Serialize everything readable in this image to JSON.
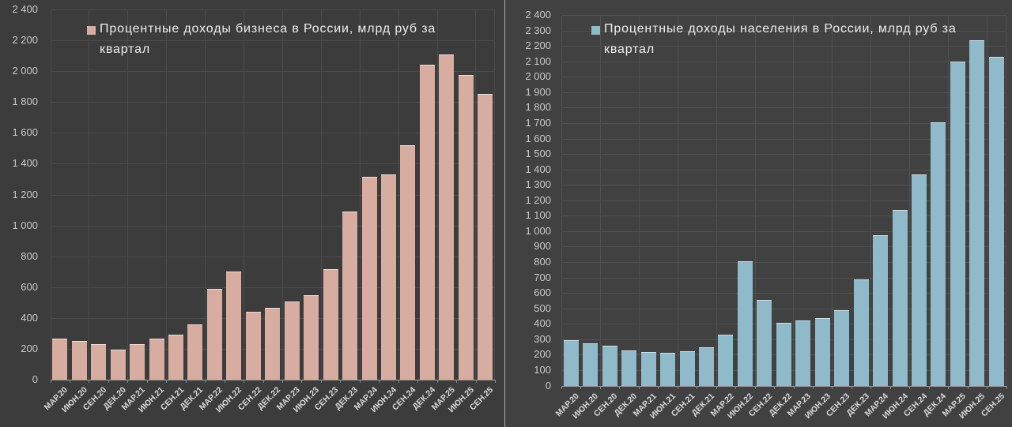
{
  "page": {
    "background_left": "#3c3c3c",
    "background_right": "#414141",
    "divider_color": "#a9a9a9"
  },
  "chart_data": [
    {
      "type": "bar",
      "title": "Процентные доходы бизнеса в России, млрд руб за квартал",
      "legend_label": "Процентные доходы бизнеса в России, млрд руб за\nквартал",
      "legend_position": "top",
      "grid": true,
      "xlabel": "",
      "ylabel": "",
      "ylim": [
        0,
        2400
      ],
      "y_major_step": 200,
      "bar_color": "#d6ada0",
      "bar_top_edge": "#efdbd3",
      "categories": [
        "МАР.20",
        "ИЮН.20",
        "СЕН.20",
        "ДЕК.20",
        "МАР.21",
        "ИЮН.21",
        "СЕН.21",
        "ДЕК.21",
        "МАР.22",
        "ИЮН.22",
        "СЕН.22",
        "ДЕК.22",
        "МАР.23",
        "ИЮН.23",
        "СЕН.23",
        "ДЕК.23",
        "МАР.24",
        "ИЮН.24",
        "СЕН.24",
        "ДЕК.24",
        "МАР.25",
        "ИЮН.25",
        "СЕН.25"
      ],
      "values": [
        265,
        250,
        228,
        197,
        230,
        265,
        290,
        358,
        590,
        703,
        438,
        468,
        505,
        548,
        715,
        1090,
        1315,
        1330,
        1520,
        2040,
        2110,
        1975,
        1850
      ]
    },
    {
      "type": "bar",
      "title": "Процентные доходы населения в России, млрд руб за квартал",
      "legend_label": "Процентные доходы населения в России, млрд руб за\nквартал",
      "legend_position": "top",
      "grid": true,
      "xlabel": "",
      "ylabel": "",
      "ylim": [
        0,
        2400
      ],
      "y_major_step": 100,
      "bar_color": "#90b9c9",
      "bar_top_edge": "#c9dfe8",
      "categories": [
        "МАР.20",
        "ИЮН.20",
        "СЕН.20",
        "ДЕК.20",
        "МАР.21",
        "ИЮН.21",
        "СЕН.21",
        "ДЕК.21",
        "МАР.22",
        "ИЮН.22",
        "СЕН.22",
        "ДЕК.22",
        "МАР.23",
        "ИЮН.23",
        "СЕН.23",
        "ДЕК.23",
        "МАР.24",
        "ИЮН.24",
        "СЕН.24",
        "ДЕК.24",
        "МАР.25",
        "ИЮН.25",
        "СЕН.25"
      ],
      "values": [
        295,
        272,
        257,
        230,
        215,
        210,
        222,
        248,
        328,
        805,
        555,
        405,
        420,
        437,
        488,
        687,
        975,
        1140,
        1370,
        1705,
        2100,
        2235,
        2130
      ]
    }
  ],
  "style": {
    "gridline_color_left": "#4b4b4b",
    "gridline_color_right": "#505050",
    "baseline_color": "#a0a0a0",
    "tick_color": "#8a8a8a",
    "y_label_color": "#c9c9c9",
    "x_label_color": "#d8d8d8",
    "legend_text_color": "#ededed"
  }
}
